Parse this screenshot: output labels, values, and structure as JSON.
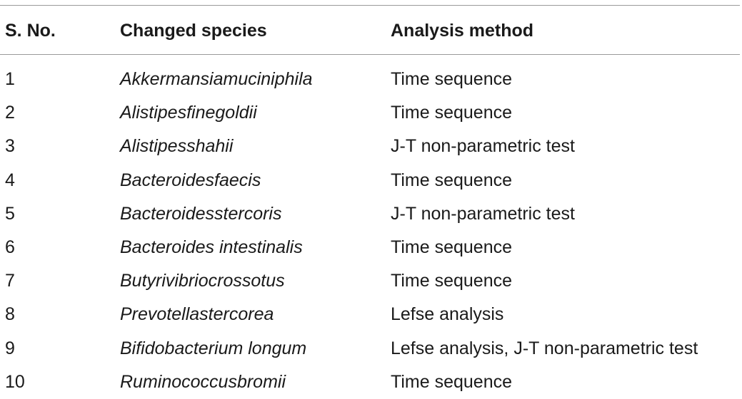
{
  "table": {
    "headers": {
      "number": "S. No.",
      "species": "Changed species",
      "method": "Analysis method"
    },
    "rows": [
      {
        "number": "1",
        "species": "Akkermansiamuciniphila",
        "method": "Time sequence"
      },
      {
        "number": "2",
        "species": "Alistipesfinegoldii",
        "method": "Time sequence"
      },
      {
        "number": "3",
        "species": "Alistipesshahii",
        "method": "J-T non-parametric test"
      },
      {
        "number": "4",
        "species": "Bacteroidesfaecis",
        "method": "Time sequence"
      },
      {
        "number": "5",
        "species": "Bacteroidesstercoris",
        "method": "J-T non-parametric test"
      },
      {
        "number": "6",
        "species": "Bacteroides intestinalis",
        "method": "Time sequence"
      },
      {
        "number": "7",
        "species": "Butyrivibriocrossotus",
        "method": "Time sequence"
      },
      {
        "number": "8",
        "species": "Prevotellastercorea",
        "method": "Lefse analysis"
      },
      {
        "number": "9",
        "species": "Bifidobacterium longum",
        "method": "Lefse analysis, J-T non-parametric test"
      },
      {
        "number": "10",
        "species": "Ruminococcusbromii",
        "method": "Time sequence"
      }
    ]
  }
}
